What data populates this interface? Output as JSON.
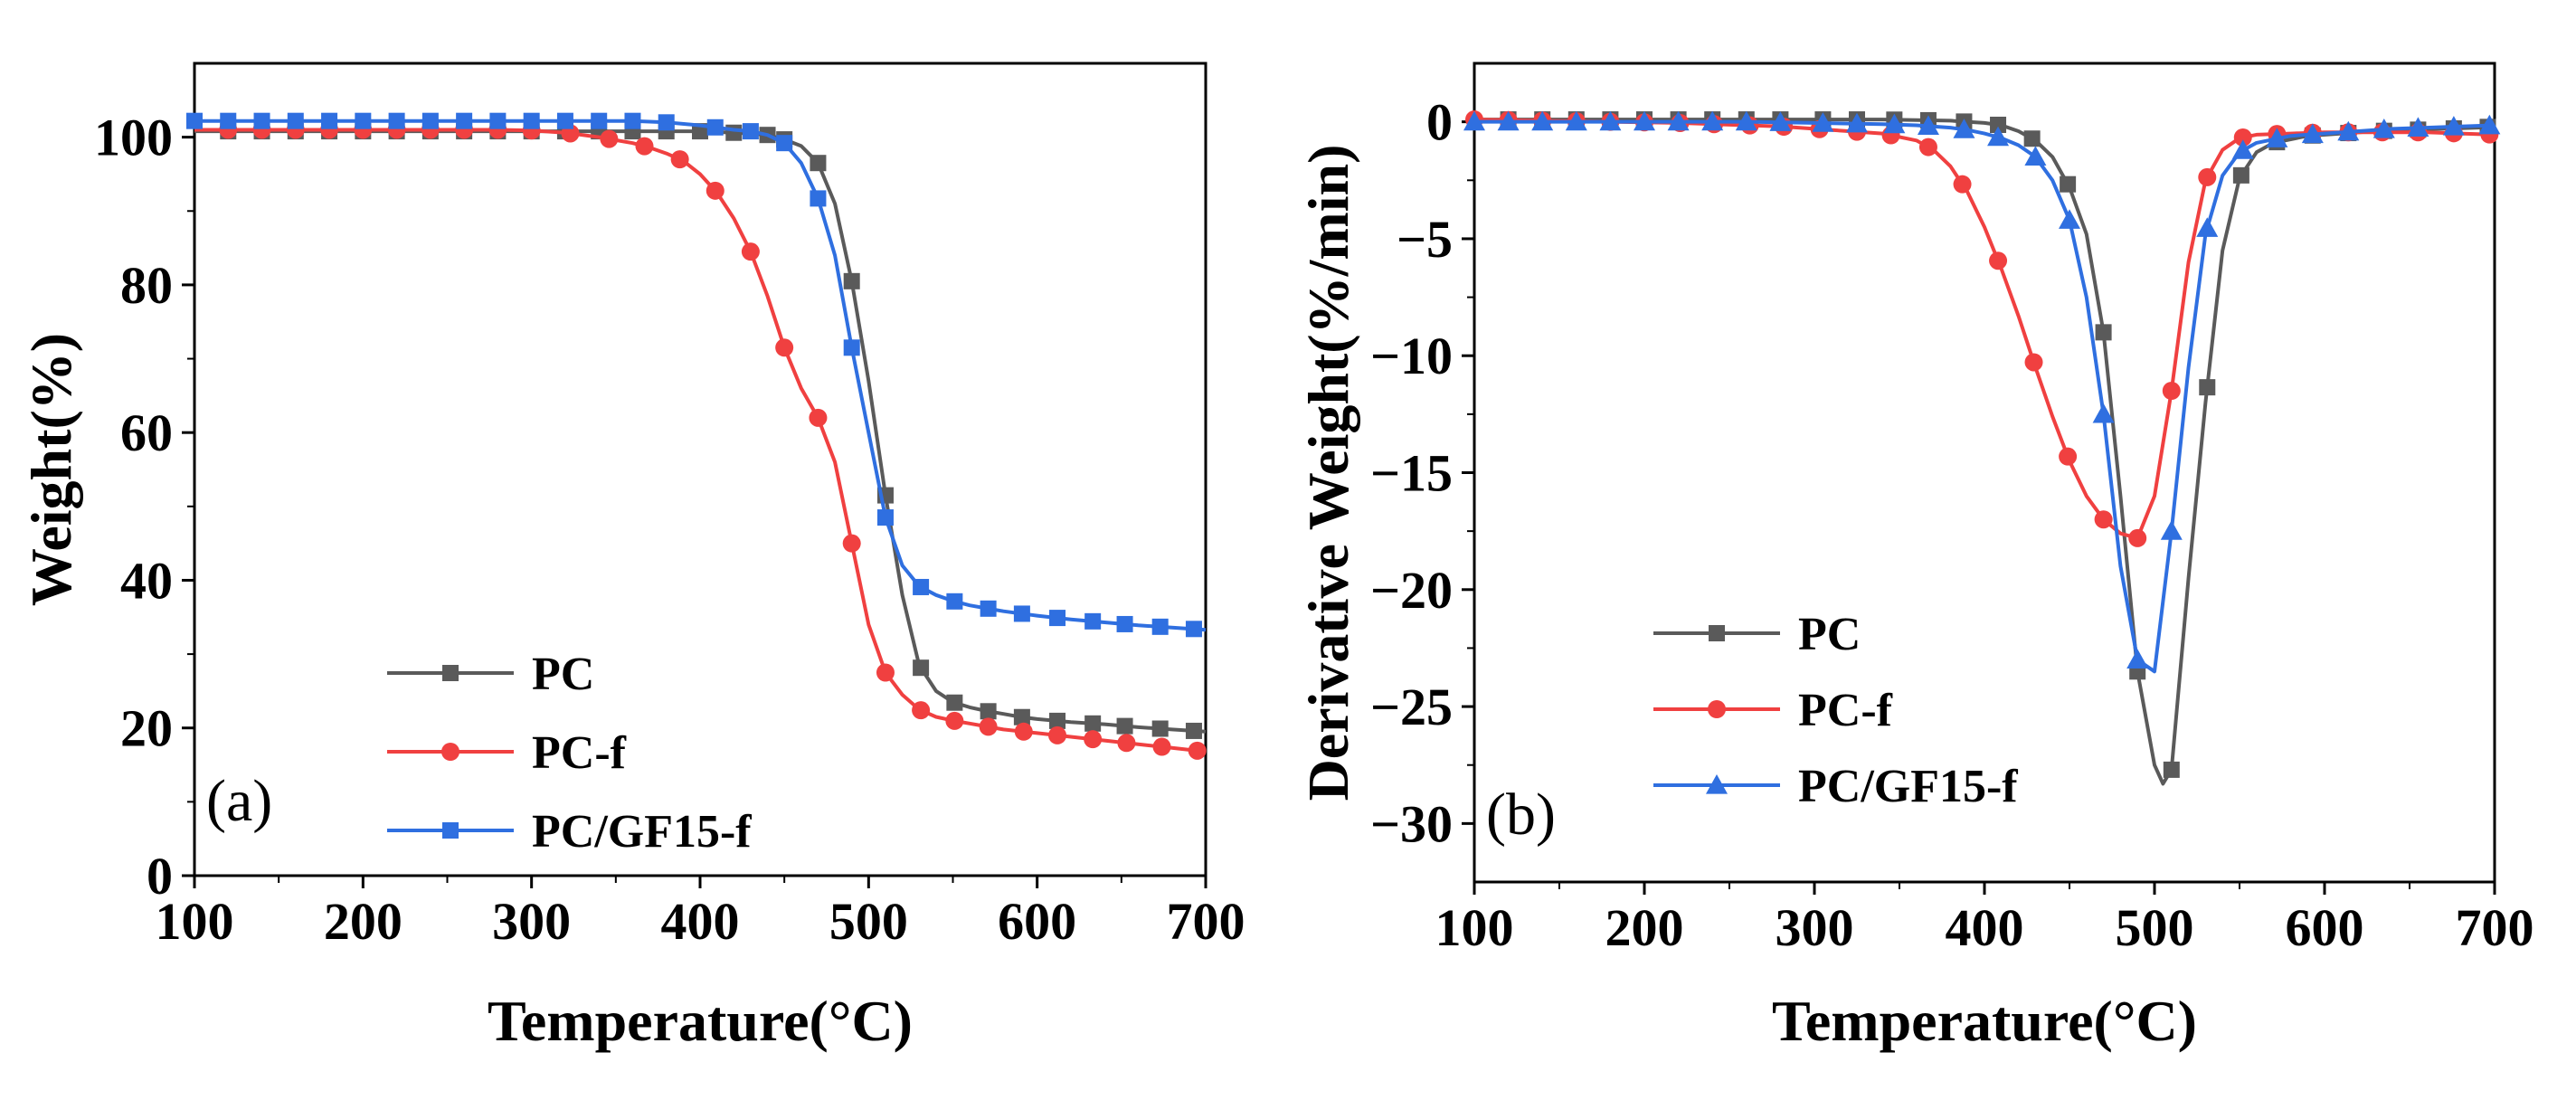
{
  "chart_data": [
    {
      "type": "line",
      "panel_label": "(a)",
      "xlabel": "Temperature(°C)",
      "ylabel": "Weight(%)",
      "xlim": [
        100,
        700
      ],
      "ylim": [
        0,
        110
      ],
      "xticks": [
        100,
        200,
        300,
        400,
        500,
        600,
        700
      ],
      "yticks": [
        0,
        20,
        40,
        60,
        80,
        100
      ],
      "legend_position": "bottom-left",
      "series": [
        {
          "name": "PC",
          "color": "#5a5a5a",
          "marker": "square",
          "x": [
            100,
            120,
            140,
            160,
            180,
            200,
            220,
            240,
            260,
            280,
            300,
            320,
            340,
            360,
            380,
            400,
            410,
            420,
            430,
            440,
            450,
            460,
            470,
            480,
            490,
            500,
            510,
            520,
            530,
            540,
            550,
            560,
            570,
            580,
            590,
            600,
            620,
            640,
            660,
            680,
            700
          ],
          "y": [
            100.8,
            100.8,
            100.8,
            100.8,
            100.8,
            100.8,
            100.8,
            100.8,
            100.8,
            100.8,
            100.8,
            100.8,
            100.8,
            100.8,
            100.8,
            100.8,
            100.7,
            100.6,
            100.5,
            100.3,
            99.7,
            98.8,
            96.5,
            91.0,
            80.5,
            67.0,
            51.5,
            38.0,
            28.5,
            25.0,
            23.5,
            22.8,
            22.3,
            21.9,
            21.5,
            21.2,
            20.8,
            20.5,
            20.1,
            19.8,
            19.5
          ],
          "marker_x": [
            120,
            140,
            160,
            180,
            200,
            220,
            240,
            260,
            280,
            300,
            320,
            340,
            360,
            380,
            400,
            420,
            440,
            450,
            470,
            490,
            510,
            531,
            551,
            571,
            591,
            612,
            633,
            652,
            673,
            693
          ]
        },
        {
          "name": "PC-f",
          "color": "#f04040",
          "marker": "circle",
          "x": [
            100,
            120,
            140,
            160,
            180,
            200,
            220,
            240,
            260,
            280,
            300,
            320,
            340,
            360,
            370,
            380,
            390,
            400,
            410,
            420,
            430,
            440,
            450,
            460,
            470,
            480,
            490,
            500,
            510,
            520,
            530,
            540,
            550,
            560,
            570,
            580,
            600,
            620,
            640,
            660,
            680,
            700
          ],
          "y": [
            101.0,
            101.0,
            101.0,
            101.0,
            101.0,
            101.0,
            101.0,
            101.0,
            101.0,
            101.0,
            100.9,
            100.6,
            100.0,
            99.2,
            98.6,
            97.8,
            96.8,
            95.0,
            92.5,
            89.0,
            84.5,
            78.5,
            71.5,
            66.0,
            62.0,
            56.0,
            45.0,
            34.0,
            27.5,
            24.5,
            22.5,
            21.5,
            21.0,
            20.6,
            20.2,
            19.8,
            19.3,
            18.8,
            18.3,
            17.8,
            17.3,
            16.8
          ],
          "marker_x": [
            120,
            140,
            160,
            180,
            200,
            220,
            240,
            260,
            280,
            300,
            323,
            346,
            367,
            388,
            409,
            430,
            450,
            470,
            490,
            510,
            531,
            551,
            571,
            592,
            612,
            633,
            653,
            674,
            695
          ]
        },
        {
          "name": "PC/GF15-f",
          "color": "#2f6fe0",
          "marker": "square",
          "x": [
            100,
            120,
            140,
            160,
            180,
            200,
            220,
            240,
            260,
            280,
            300,
            320,
            340,
            360,
            380,
            400,
            410,
            420,
            430,
            440,
            450,
            460,
            470,
            480,
            490,
            500,
            510,
            520,
            530,
            540,
            550,
            560,
            570,
            580,
            590,
            600,
            620,
            640,
            660,
            680,
            700
          ],
          "y": [
            102.2,
            102.2,
            102.2,
            102.2,
            102.2,
            102.2,
            102.2,
            102.2,
            102.2,
            102.2,
            102.2,
            102.2,
            102.2,
            102.2,
            102.0,
            101.6,
            101.3,
            101.0,
            100.8,
            100.3,
            99.2,
            96.5,
            91.7,
            84.0,
            71.5,
            60.0,
            48.5,
            42.0,
            39.2,
            38.0,
            37.2,
            36.6,
            36.2,
            35.8,
            35.5,
            35.2,
            34.7,
            34.3,
            33.9,
            33.6,
            33.3
          ],
          "marker_x": [
            100,
            120,
            140,
            160,
            180,
            200,
            220,
            240,
            260,
            280,
            300,
            320,
            340,
            360,
            380,
            409,
            430,
            450,
            470,
            490,
            510,
            531,
            551,
            571,
            591,
            612,
            633,
            652,
            673,
            693
          ]
        }
      ]
    },
    {
      "type": "line",
      "panel_label": "(b)",
      "xlabel": "Temperature(°C)",
      "ylabel": "Derivative Weight(%/min)",
      "xlim": [
        100,
        700
      ],
      "ylim": [
        -32.5,
        2.5
      ],
      "xticks": [
        100,
        200,
        300,
        400,
        500,
        600,
        700
      ],
      "yticks": [
        0,
        -5,
        -10,
        -15,
        -20,
        -25,
        -30
      ],
      "legend_position": "lower-left",
      "series": [
        {
          "name": "PC",
          "color": "#5a5a5a",
          "marker": "square",
          "x": [
            100,
            140,
            180,
            220,
            260,
            300,
            340,
            380,
            400,
            410,
            420,
            430,
            440,
            450,
            460,
            470,
            480,
            490,
            500,
            505,
            510,
            520,
            530,
            540,
            550,
            560,
            570,
            590,
            610,
            630,
            650,
            670,
            690,
            700
          ],
          "y": [
            0.1,
            0.1,
            0.1,
            0.1,
            0.1,
            0.1,
            0.1,
            0.05,
            -0.05,
            -0.15,
            -0.4,
            -0.8,
            -1.5,
            -2.8,
            -4.8,
            -9.0,
            -16.0,
            -23.5,
            -27.5,
            -28.3,
            -27.7,
            -19.5,
            -12.0,
            -5.5,
            -2.4,
            -1.3,
            -0.9,
            -0.6,
            -0.5,
            -0.4,
            -0.35,
            -0.3,
            -0.25,
            -0.2
          ],
          "marker_x": [
            120,
            140,
            160,
            180,
            200,
            220,
            240,
            260,
            280,
            305,
            325,
            347,
            367,
            388,
            408,
            428,
            449,
            470,
            490,
            510,
            531,
            551,
            572,
            593,
            614,
            635,
            655,
            676,
            696
          ]
        },
        {
          "name": "PC-f",
          "color": "#f04040",
          "marker": "circle",
          "x": [
            100,
            140,
            180,
            220,
            260,
            280,
            300,
            320,
            340,
            360,
            370,
            380,
            390,
            400,
            410,
            420,
            430,
            440,
            450,
            460,
            470,
            480,
            490,
            500,
            510,
            520,
            530,
            540,
            550,
            560,
            580,
            600,
            620,
            640,
            660,
            680,
            700
          ],
          "y": [
            0.1,
            0.05,
            0.0,
            -0.05,
            -0.15,
            -0.2,
            -0.3,
            -0.4,
            -0.5,
            -0.8,
            -1.2,
            -1.9,
            -3.0,
            -4.5,
            -6.3,
            -8.3,
            -10.5,
            -12.6,
            -14.5,
            -16.0,
            -17.0,
            -17.6,
            -17.8,
            -16.0,
            -11.5,
            -6.0,
            -2.5,
            -1.2,
            -0.7,
            -0.55,
            -0.5,
            -0.45,
            -0.45,
            -0.45,
            -0.45,
            -0.5,
            -0.55
          ],
          "marker_x": [
            100,
            120,
            140,
            160,
            180,
            200,
            221,
            241,
            262,
            282,
            303,
            325,
            345,
            367,
            387,
            408,
            429,
            449,
            470,
            490,
            510,
            531,
            552,
            572,
            593,
            614,
            634,
            655,
            676,
            697
          ]
        },
        {
          "name": "PC/GF15-f",
          "color": "#2f6fe0",
          "marker": "triangle",
          "x": [
            100,
            140,
            180,
            220,
            260,
            300,
            340,
            360,
            380,
            390,
            400,
            410,
            420,
            430,
            440,
            450,
            460,
            470,
            480,
            490,
            500,
            510,
            520,
            530,
            540,
            550,
            560,
            580,
            600,
            620,
            640,
            660,
            680,
            700
          ],
          "y": [
            0.0,
            0.0,
            0.0,
            0.0,
            0.0,
            -0.05,
            -0.1,
            -0.15,
            -0.25,
            -0.35,
            -0.5,
            -0.7,
            -1.0,
            -1.5,
            -2.5,
            -4.2,
            -7.5,
            -12.5,
            -19.0,
            -23.0,
            -23.5,
            -17.5,
            -10.5,
            -4.8,
            -2.3,
            -1.3,
            -0.9,
            -0.6,
            -0.5,
            -0.4,
            -0.3,
            -0.25,
            -0.2,
            -0.15
          ],
          "marker_x": [
            100,
            120,
            140,
            160,
            180,
            200,
            220,
            240,
            260,
            280,
            305,
            325,
            347,
            367,
            388,
            408,
            430,
            450,
            470,
            490,
            510,
            531,
            552,
            572,
            593,
            614,
            635,
            655,
            676,
            697
          ]
        }
      ]
    }
  ]
}
